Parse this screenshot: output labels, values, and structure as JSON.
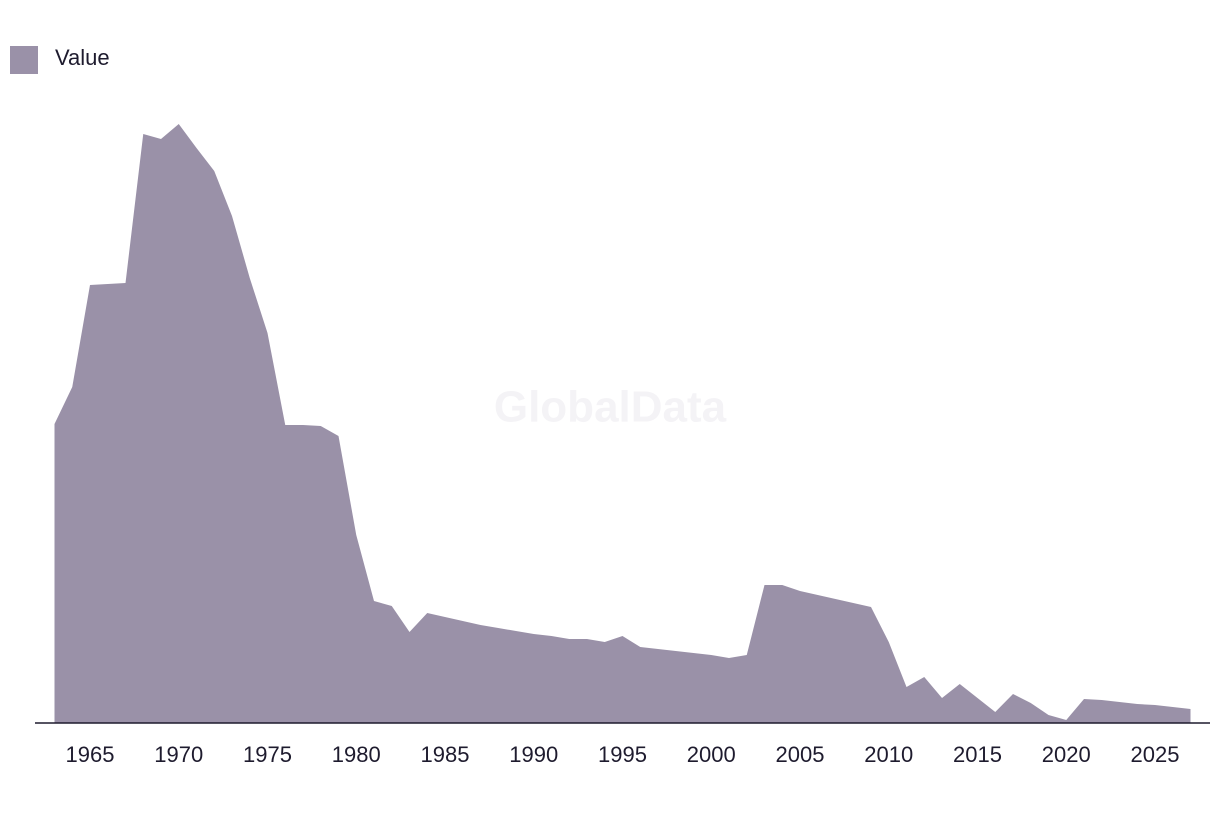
{
  "chart_data": {
    "type": "area",
    "watermark": "GlobalData",
    "x": [
      1963,
      1964,
      1965,
      1966,
      1967,
      1968,
      1969,
      1970,
      1971,
      1972,
      1973,
      1974,
      1975,
      1976,
      1977,
      1978,
      1979,
      1980,
      1981,
      1982,
      1983,
      1984,
      1985,
      1986,
      1987,
      1988,
      1989,
      1990,
      1991,
      1992,
      1993,
      1994,
      1995,
      1996,
      1997,
      1998,
      1999,
      2000,
      2001,
      2002,
      2003,
      2004,
      2005,
      2006,
      2007,
      2008,
      2009,
      2010,
      2011,
      2012,
      2013,
      2014,
      2015,
      2016,
      2017,
      2018,
      2019,
      2020,
      2021,
      2022,
      2023,
      2024,
      2025,
      2026,
      2027
    ],
    "series": [
      {
        "name": "Value",
        "color": "#9a91a8",
        "values": [
          299,
          336,
          438,
          439,
          440,
          589,
          584,
          599,
          575,
          552,
          507,
          445,
          390,
          298,
          298,
          297,
          287,
          188,
          122,
          117,
          91,
          110,
          106,
          102,
          98,
          95,
          92,
          89,
          87,
          84,
          84,
          81,
          87,
          76,
          74,
          72,
          70,
          68,
          65,
          68,
          138,
          138,
          132,
          128,
          124,
          120,
          116,
          81,
          36,
          46,
          25,
          39,
          25,
          11,
          29,
          20,
          8,
          3,
          24,
          23,
          21,
          19,
          18,
          16,
          14
        ]
      }
    ],
    "xlim": [
      1963,
      2027
    ],
    "xticks": [
      1965,
      1970,
      1975,
      1980,
      1985,
      1990,
      1995,
      2000,
      2005,
      2010,
      2015,
      2020,
      2025
    ],
    "ylim": [
      0,
      620
    ],
    "legend": "top-left"
  }
}
